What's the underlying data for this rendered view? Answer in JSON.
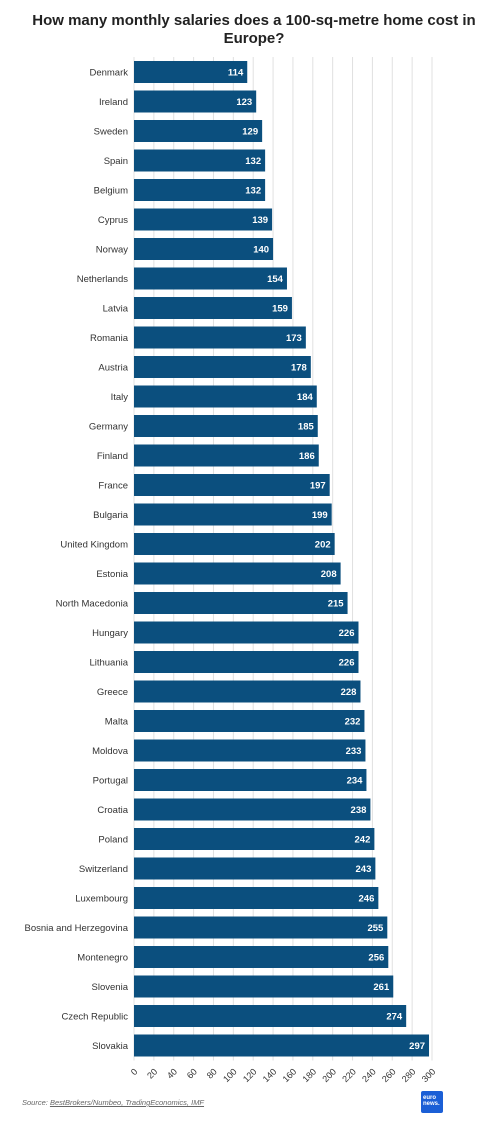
{
  "title": "How many monthly salaries does a 100-sq-metre home cost in Europe?",
  "source": {
    "prefix": "Source: ",
    "text": "BestBrokers/Numbeo, TradingEconomics, IMF"
  },
  "logo": {
    "line1": "euro",
    "line2": "news."
  },
  "colors": {
    "bar": "#0b4f7e",
    "label": "#ffffff",
    "grid": "#e0e0e0"
  },
  "chart_data": {
    "type": "bar",
    "orientation": "horizontal",
    "categories": [
      "Denmark",
      "Ireland",
      "Sweden",
      "Spain",
      "Belgium",
      "Cyprus",
      "Norway",
      "Netherlands",
      "Latvia",
      "Romania",
      "Austria",
      "Italy",
      "Germany",
      "Finland",
      "France",
      "Bulgaria",
      "United Kingdom",
      "Estonia",
      "North Macedonia",
      "Hungary",
      "Lithuania",
      "Greece",
      "Malta",
      "Moldova",
      "Portugal",
      "Croatia",
      "Poland",
      "Switzerland",
      "Luxembourg",
      "Bosnia and Herzegovina",
      "Montenegro",
      "Slovenia",
      "Czech Republic",
      "Slovakia"
    ],
    "values": [
      114,
      123,
      129,
      132,
      132,
      139,
      140,
      154,
      159,
      173,
      178,
      184,
      185,
      186,
      197,
      199,
      202,
      208,
      215,
      226,
      226,
      228,
      232,
      233,
      234,
      238,
      242,
      243,
      246,
      255,
      256,
      261,
      274,
      297
    ],
    "xlim": [
      0,
      300
    ],
    "xticks": [
      "0",
      "20",
      "40",
      "60",
      "80",
      "100",
      "120",
      "140",
      "160",
      "180",
      "200",
      "220",
      "240",
      "260",
      "280",
      "300"
    ],
    "grid": true,
    "data_labels": true
  }
}
